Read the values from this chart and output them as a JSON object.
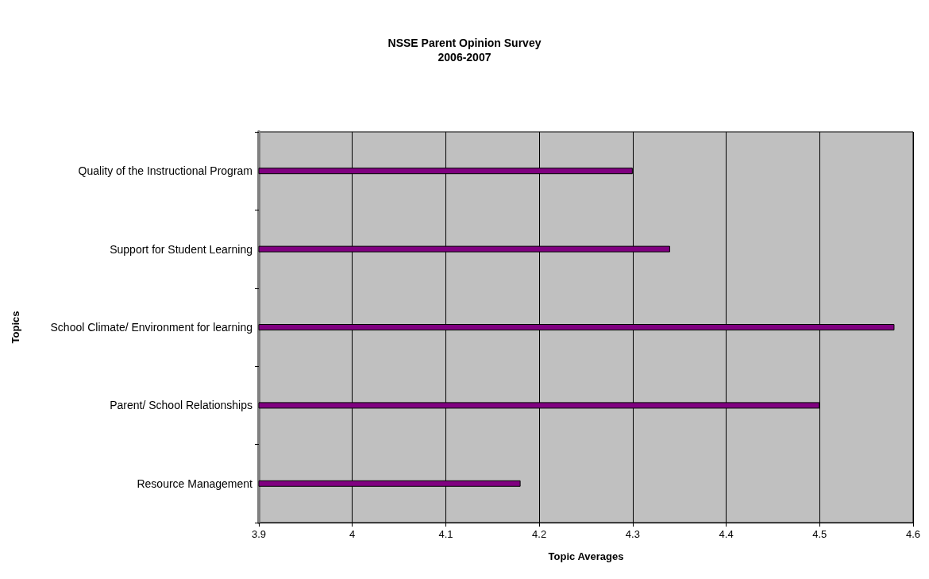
{
  "chart_data": {
    "type": "bar",
    "orientation": "horizontal",
    "title": "NSSE Parent Opinion Survey\n2006-2007",
    "xlabel": "Topic Averages",
    "ylabel": "Topics",
    "categories": [
      "Quality of the Instructional Program",
      "Support for Student Learning",
      "School Climate/ Environment for learning",
      "Parent/ School Relationships",
      "Resource Management"
    ],
    "values": [
      4.3,
      4.34,
      4.58,
      4.5,
      4.18
    ],
    "color": "#800080",
    "xlim": [
      3.9,
      4.6
    ],
    "xticks": [
      3.9,
      4,
      4.1,
      4.2,
      4.3,
      4.4,
      4.5,
      4.6
    ],
    "grid": "x"
  }
}
